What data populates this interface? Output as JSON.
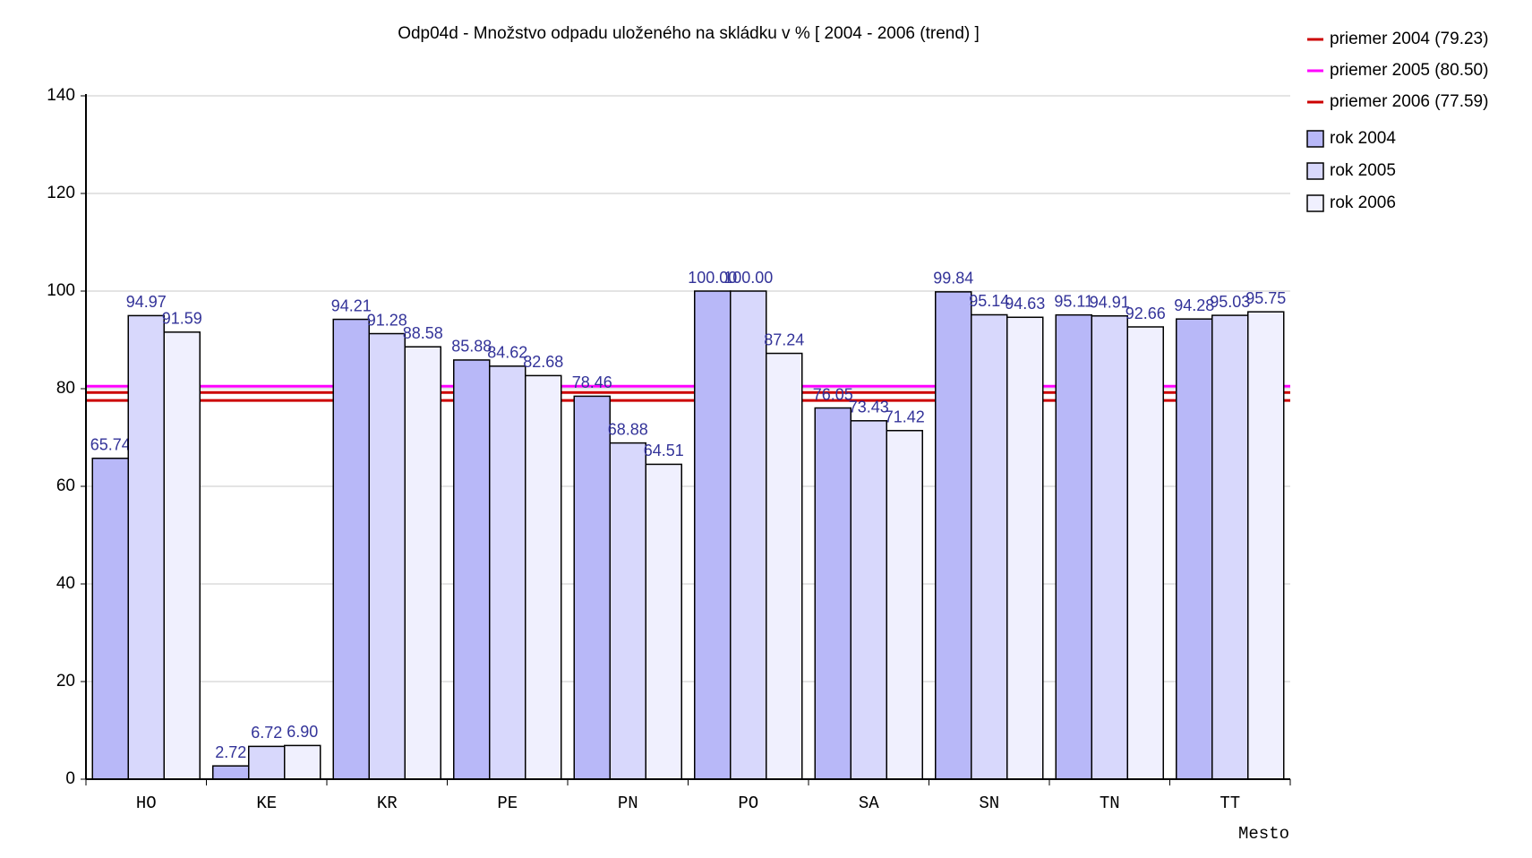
{
  "chart_data": {
    "type": "bar",
    "title": "Odp04d - Množstvo odpadu uloženého na skládku v % [ 2004 - 2006 (trend) ]",
    "x_label": "Mesto",
    "categories": [
      "HO",
      "KE",
      "KR",
      "PE",
      "PN",
      "PO",
      "SA",
      "SN",
      "TN",
      "TT"
    ],
    "series": [
      {
        "name": "rok 2004",
        "color": "#b8b8f8",
        "values": [
          65.74,
          2.72,
          94.21,
          85.88,
          78.46,
          100,
          76.05,
          99.84,
          95.11,
          94.28
        ],
        "value_labels": [
          "65.74",
          "2.72",
          "94.21",
          "85.88",
          "78.46",
          "100.00",
          "76.05",
          "99.84",
          "95.11",
          "94.28"
        ]
      },
      {
        "name": "rok 2005",
        "color": "#d8d8fc",
        "values": [
          94.97,
          6.72,
          91.28,
          84.62,
          68.88,
          100,
          73.43,
          95.14,
          94.91,
          95.03
        ],
        "value_labels": [
          "94.97",
          "6.72",
          "91.28",
          "84.62",
          "68.88",
          "100.00",
          "73.43",
          "95.14",
          "94.91",
          "95.03"
        ]
      },
      {
        "name": "rok 2006",
        "color": "#f0f0fe",
        "values": [
          91.59,
          6.9,
          88.58,
          82.68,
          64.51,
          87.24,
          71.42,
          94.63,
          92.66,
          95.75
        ],
        "value_labels": [
          "91.59",
          "6.90",
          "88.58",
          "82.68",
          "64.51",
          "87.24",
          "71.42",
          "94.63",
          "92.66",
          "95.75"
        ]
      }
    ],
    "reference_lines": [
      {
        "name": "priemer 2004 (79.23)",
        "value": 79.23,
        "color": "#cc0000"
      },
      {
        "name": "priemer 2005 (80.50)",
        "value": 80.5,
        "color": "#ff00ff"
      },
      {
        "name": "priemer 2006 (77.59)",
        "value": 77.59,
        "color": "#cc0000"
      }
    ],
    "ylim": [
      0,
      140
    ],
    "yticks": [
      0,
      20,
      40,
      60,
      80,
      100,
      120,
      140
    ],
    "grid": true
  }
}
